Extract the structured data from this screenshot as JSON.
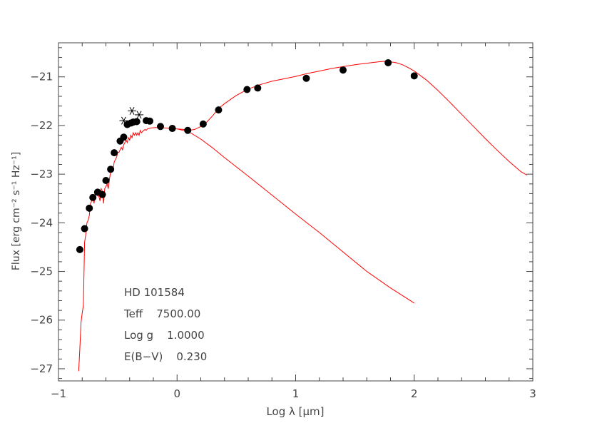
{
  "chart_data": {
    "type": "scatter",
    "xlabel": "Log λ [μm]",
    "ylabel": "Flux [erg cm⁻² s⁻¹ Hz⁻¹]",
    "xlim": [
      -1,
      3
    ],
    "ylim": [
      -27.25,
      -20.3
    ],
    "xticks": [
      {
        "v": -1,
        "label": "−1"
      },
      {
        "v": 0,
        "label": "0"
      },
      {
        "v": 1,
        "label": "1"
      },
      {
        "v": 2,
        "label": "2"
      },
      {
        "v": 3,
        "label": "3"
      }
    ],
    "yticks": [
      {
        "v": -21,
        "label": "−21"
      },
      {
        "v": -22,
        "label": "−22"
      },
      {
        "v": -23,
        "label": "−23"
      },
      {
        "v": -24,
        "label": "−24"
      },
      {
        "v": -25,
        "label": "−25"
      },
      {
        "v": -26,
        "label": "−26"
      },
      {
        "v": -27,
        "label": "−27"
      }
    ],
    "grid": false,
    "colors": {
      "points": "#000000",
      "model": "#ff0000",
      "axes": "#444444"
    },
    "annotations": [
      {
        "key": "star",
        "text": "HD 101584"
      },
      {
        "key": "teff",
        "text": "Teff    7500.00"
      },
      {
        "key": "logg",
        "text": "Log g    1.0000"
      },
      {
        "key": "ebv",
        "text": "E(B−V)    0.230"
      }
    ],
    "series": [
      {
        "kind": "points",
        "marker": "dot",
        "x": [
          -0.82,
          -0.78,
          -0.74,
          -0.71,
          -0.67,
          -0.63,
          -0.6,
          -0.56,
          -0.53,
          -0.48,
          -0.45,
          -0.42,
          -0.39,
          -0.37,
          -0.34,
          -0.26,
          -0.23,
          -0.14,
          -0.04,
          0.09,
          0.22,
          0.35,
          0.59,
          0.68,
          1.09,
          1.4,
          1.78,
          2.0
        ],
        "y": [
          -24.55,
          -24.12,
          -23.7,
          -23.48,
          -23.37,
          -23.42,
          -23.13,
          -22.9,
          -22.56,
          -22.32,
          -22.24,
          -21.98,
          -21.95,
          -21.93,
          -21.92,
          -21.9,
          -21.91,
          -22.02,
          -22.06,
          -22.1,
          -21.97,
          -21.68,
          -21.26,
          -21.23,
          -21.03,
          -20.86,
          -20.71,
          -20.98
        ]
      },
      {
        "kind": "points",
        "marker": "asterisk",
        "x": [
          -0.45,
          -0.38,
          -0.32
        ],
        "y": [
          -21.9,
          -21.7,
          -21.78
        ]
      },
      {
        "kind": "line",
        "name": "",
        "x": [
          -0.83,
          -0.82,
          -0.81,
          -0.8,
          -0.79,
          -0.78,
          -0.77,
          -0.76,
          -0.75,
          -0.74,
          -0.73,
          -0.72,
          -0.71,
          -0.7,
          -0.69,
          -0.68,
          -0.67,
          -0.66,
          -0.65,
          -0.64,
          -0.63,
          -0.62,
          -0.61,
          -0.6,
          -0.59,
          -0.58,
          -0.57,
          -0.56,
          -0.55,
          -0.54,
          -0.53,
          -0.52,
          -0.51,
          -0.5,
          -0.49,
          -0.48,
          -0.47,
          -0.46,
          -0.45,
          -0.44,
          -0.43,
          -0.42,
          -0.41,
          -0.4,
          -0.39,
          -0.38,
          -0.37,
          -0.36,
          -0.35,
          -0.34,
          -0.33,
          -0.32,
          -0.31,
          -0.3,
          -0.29,
          -0.28,
          -0.27,
          -0.26,
          -0.25,
          -0.22,
          -0.18,
          -0.14,
          -0.1,
          -0.05,
          0.0,
          0.05,
          0.1,
          0.15,
          0.2,
          0.25,
          0.3,
          0.35,
          0.4,
          0.5,
          0.6,
          0.7,
          0.8,
          0.9,
          1.0,
          1.1,
          1.2,
          1.3,
          1.4,
          1.5,
          1.6,
          1.7,
          1.75,
          1.8,
          1.85,
          1.9,
          1.95,
          2.0,
          2.1,
          2.2,
          2.3,
          2.4,
          2.5,
          2.6,
          2.7,
          2.8,
          2.9,
          2.95
        ],
        "y": [
          -27.05,
          -26.6,
          -26.05,
          -25.85,
          -25.7,
          -24.4,
          -24.25,
          -24.0,
          -23.95,
          -23.85,
          -23.6,
          -23.55,
          -23.5,
          -23.6,
          -23.4,
          -23.35,
          -23.45,
          -23.45,
          -23.55,
          -23.3,
          -23.35,
          -23.6,
          -23.3,
          -23.25,
          -23.2,
          -23.3,
          -23.1,
          -22.95,
          -22.95,
          -22.9,
          -22.75,
          -22.7,
          -22.65,
          -22.55,
          -22.55,
          -22.5,
          -22.45,
          -22.5,
          -22.4,
          -22.35,
          -22.3,
          -22.35,
          -22.25,
          -22.3,
          -22.2,
          -22.25,
          -22.15,
          -22.2,
          -22.15,
          -22.2,
          -22.15,
          -22.2,
          -22.1,
          -22.15,
          -22.12,
          -22.1,
          -22.08,
          -22.1,
          -22.07,
          -22.05,
          -22.04,
          -22.05,
          -22.05,
          -22.06,
          -22.07,
          -22.08,
          -22.1,
          -22.08,
          -22.02,
          -21.93,
          -21.8,
          -21.65,
          -21.55,
          -21.38,
          -21.25,
          -21.16,
          -21.09,
          -21.04,
          -20.99,
          -20.93,
          -20.88,
          -20.83,
          -20.79,
          -20.75,
          -20.72,
          -20.69,
          -20.68,
          -20.69,
          -20.71,
          -20.75,
          -20.81,
          -20.88,
          -21.06,
          -21.28,
          -21.52,
          -21.77,
          -22.02,
          -22.27,
          -22.51,
          -22.74,
          -22.95,
          -23.02
        ]
      },
      {
        "kind": "line",
        "name": "",
        "x": [
          0.0,
          0.1,
          0.2,
          0.3,
          0.4,
          0.6,
          0.8,
          1.0,
          1.2,
          1.4,
          1.6,
          1.8,
          2.0
        ],
        "y": [
          -22.07,
          -22.13,
          -22.28,
          -22.46,
          -22.66,
          -23.04,
          -23.43,
          -23.82,
          -24.2,
          -24.6,
          -25.0,
          -25.34,
          -25.65
        ]
      }
    ]
  }
}
